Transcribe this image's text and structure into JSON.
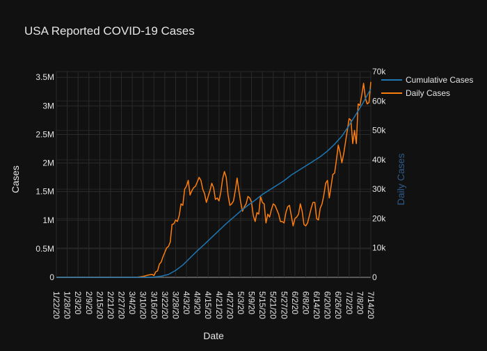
{
  "colors": {
    "background": "#111111",
    "grid": "#2b2b2b",
    "zeroline": "#5a5a5a",
    "cumulative": "#1f77b4",
    "daily": "#ff7f0e",
    "text": "#e6e6e6",
    "y2_title": "#2f5a8a"
  },
  "chart_data": {
    "type": "line",
    "title": "USA Reported COVID-19 Cases",
    "xlabel": "Date",
    "ylabel": "Cases",
    "y2label": "Daily Cases",
    "grid": true,
    "legend_position": "top-right",
    "x_start": "2020-01-22",
    "x_end": "2020-07-14",
    "xticks": [
      "1/22/20",
      "1/28/20",
      "2/3/20",
      "2/9/20",
      "2/15/20",
      "2/21/20",
      "2/27/20",
      "3/4/20",
      "3/10/20",
      "3/16/20",
      "3/22/20",
      "3/28/20",
      "4/3/20",
      "4/9/20",
      "4/15/20",
      "4/21/20",
      "4/27/20",
      "5/3/20",
      "5/9/20",
      "5/15/20",
      "5/21/20",
      "5/27/20",
      "6/2/20",
      "6/8/20",
      "6/14/20",
      "6/20/20",
      "6/26/20",
      "7/2/20",
      "7/8/20",
      "7/14/20"
    ],
    "ylim": [
      0,
      3600000
    ],
    "yticks": [
      0,
      500000,
      1000000,
      1500000,
      2000000,
      2500000,
      3000000,
      3500000
    ],
    "ytick_labels": [
      "0",
      "0.5M",
      "1M",
      "1.5M",
      "2M",
      "2.5M",
      "3M",
      "3.5M"
    ],
    "y2lim": [
      0,
      70000
    ],
    "y2ticks": [
      0,
      10000,
      20000,
      30000,
      40000,
      50000,
      60000,
      70000
    ],
    "y2tick_labels": [
      "0",
      "10k",
      "20k",
      "30k",
      "40k",
      "50k",
      "60k",
      "70k"
    ],
    "series": [
      {
        "name": "Cumulative Cases",
        "axis": "y",
        "points": [
          [
            "2020-01-22",
            0
          ],
          [
            "2020-03-01",
            100
          ],
          [
            "2020-03-10",
            1000
          ],
          [
            "2020-03-16",
            5000
          ],
          [
            "2020-03-20",
            20000
          ],
          [
            "2020-03-24",
            50000
          ],
          [
            "2020-03-28",
            120000
          ],
          [
            "2020-04-01",
            215000
          ],
          [
            "2020-04-05",
            340000
          ],
          [
            "2020-04-09",
            465000
          ],
          [
            "2020-04-13",
            580000
          ],
          [
            "2020-04-17",
            700000
          ],
          [
            "2020-04-21",
            820000
          ],
          [
            "2020-04-25",
            940000
          ],
          [
            "2020-04-29",
            1050000
          ],
          [
            "2020-05-03",
            1160000
          ],
          [
            "2020-05-07",
            1260000
          ],
          [
            "2020-05-11",
            1350000
          ],
          [
            "2020-05-15",
            1450000
          ],
          [
            "2020-05-19",
            1530000
          ],
          [
            "2020-05-23",
            1610000
          ],
          [
            "2020-05-27",
            1690000
          ],
          [
            "2020-05-31",
            1790000
          ],
          [
            "2020-06-04",
            1870000
          ],
          [
            "2020-06-08",
            1950000
          ],
          [
            "2020-06-12",
            2030000
          ],
          [
            "2020-06-16",
            2110000
          ],
          [
            "2020-06-20",
            2210000
          ],
          [
            "2020-06-24",
            2330000
          ],
          [
            "2020-06-28",
            2470000
          ],
          [
            "2020-07-02",
            2660000
          ],
          [
            "2020-07-06",
            2860000
          ],
          [
            "2020-07-10",
            3070000
          ],
          [
            "2020-07-14",
            3300000
          ]
        ]
      },
      {
        "name": "Daily Cases",
        "axis": "y2",
        "points": [
          [
            "2020-01-22",
            0
          ],
          [
            "2020-03-07",
            80
          ],
          [
            "2020-03-10",
            300
          ],
          [
            "2020-03-13",
            800
          ],
          [
            "2020-03-15",
            1000
          ],
          [
            "2020-03-16",
            600
          ],
          [
            "2020-03-17",
            1900
          ],
          [
            "2020-03-18",
            2200
          ],
          [
            "2020-03-19",
            4500
          ],
          [
            "2020-03-20",
            5200
          ],
          [
            "2020-03-21",
            7000
          ],
          [
            "2020-03-22",
            8500
          ],
          [
            "2020-03-23",
            10000
          ],
          [
            "2020-03-24",
            10500
          ],
          [
            "2020-03-25",
            12000
          ],
          [
            "2020-03-26",
            18000
          ],
          [
            "2020-03-27",
            18200
          ],
          [
            "2020-03-28",
            19500
          ],
          [
            "2020-03-29",
            19000
          ],
          [
            "2020-03-30",
            21000
          ],
          [
            "2020-03-31",
            25000
          ],
          [
            "2020-04-01",
            24500
          ],
          [
            "2020-04-02",
            30000
          ],
          [
            "2020-04-03",
            31000
          ],
          [
            "2020-04-04",
            33000
          ],
          [
            "2020-04-05",
            28000
          ],
          [
            "2020-04-06",
            29500
          ],
          [
            "2020-04-07",
            30500
          ],
          [
            "2020-04-08",
            31000
          ],
          [
            "2020-04-09",
            32500
          ],
          [
            "2020-04-10",
            34000
          ],
          [
            "2020-04-11",
            33000
          ],
          [
            "2020-04-12",
            30000
          ],
          [
            "2020-04-13",
            28500
          ],
          [
            "2020-04-14",
            25500
          ],
          [
            "2020-04-15",
            27500
          ],
          [
            "2020-04-16",
            29500
          ],
          [
            "2020-04-17",
            32000
          ],
          [
            "2020-04-18",
            30500
          ],
          [
            "2020-04-19",
            26500
          ],
          [
            "2020-04-20",
            27000
          ],
          [
            "2020-04-21",
            26000
          ],
          [
            "2020-04-22",
            29000
          ],
          [
            "2020-04-23",
            33500
          ],
          [
            "2020-04-24",
            36000
          ],
          [
            "2020-04-25",
            34000
          ],
          [
            "2020-04-26",
            28000
          ],
          [
            "2020-04-27",
            24500
          ],
          [
            "2020-04-28",
            25000
          ],
          [
            "2020-04-29",
            26000
          ],
          [
            "2020-04-30",
            29500
          ],
          [
            "2020-05-01",
            33800
          ],
          [
            "2020-05-02",
            29500
          ],
          [
            "2020-05-03",
            25500
          ],
          [
            "2020-05-04",
            22500
          ],
          [
            "2020-05-05",
            24000
          ],
          [
            "2020-05-06",
            25000
          ],
          [
            "2020-05-07",
            27500
          ],
          [
            "2020-05-08",
            27000
          ],
          [
            "2020-05-09",
            25500
          ],
          [
            "2020-05-10",
            21000
          ],
          [
            "2020-05-11",
            19000
          ],
          [
            "2020-05-12",
            22000
          ],
          [
            "2020-05-13",
            21500
          ],
          [
            "2020-05-14",
            27500
          ],
          [
            "2020-05-15",
            25500
          ],
          [
            "2020-05-16",
            25000
          ],
          [
            "2020-05-17",
            18500
          ],
          [
            "2020-05-18",
            21500
          ],
          [
            "2020-05-19",
            20500
          ],
          [
            "2020-05-20",
            23000
          ],
          [
            "2020-05-21",
            25000
          ],
          [
            "2020-05-22",
            24500
          ],
          [
            "2020-05-23",
            23000
          ],
          [
            "2020-05-24",
            21500
          ],
          [
            "2020-05-25",
            19000
          ],
          [
            "2020-05-26",
            19000
          ],
          [
            "2020-05-27",
            18500
          ],
          [
            "2020-05-28",
            22000
          ],
          [
            "2020-05-29",
            24000
          ],
          [
            "2020-05-30",
            24500
          ],
          [
            "2020-05-31",
            21000
          ],
          [
            "2020-06-01",
            17500
          ],
          [
            "2020-06-02",
            20000
          ],
          [
            "2020-06-03",
            20500
          ],
          [
            "2020-06-04",
            21500
          ],
          [
            "2020-06-05",
            25000
          ],
          [
            "2020-06-06",
            22500
          ],
          [
            "2020-06-07",
            18000
          ],
          [
            "2020-06-08",
            17500
          ],
          [
            "2020-06-09",
            18500
          ],
          [
            "2020-06-10",
            21000
          ],
          [
            "2020-06-11",
            23500
          ],
          [
            "2020-06-12",
            25500
          ],
          [
            "2020-06-13",
            25500
          ],
          [
            "2020-06-14",
            20000
          ],
          [
            "2020-06-15",
            19500
          ],
          [
            "2020-06-16",
            23500
          ],
          [
            "2020-06-17",
            25000
          ],
          [
            "2020-06-18",
            28000
          ],
          [
            "2020-06-19",
            32000
          ],
          [
            "2020-06-20",
            33000
          ],
          [
            "2020-06-21",
            27000
          ],
          [
            "2020-06-22",
            31000
          ],
          [
            "2020-06-23",
            35000
          ],
          [
            "2020-06-24",
            35500
          ],
          [
            "2020-06-25",
            40000
          ],
          [
            "2020-06-26",
            45000
          ],
          [
            "2020-06-27",
            42500
          ],
          [
            "2020-06-28",
            39000
          ],
          [
            "2020-06-29",
            42000
          ],
          [
            "2020-06-30",
            46000
          ],
          [
            "2020-07-01",
            50000
          ],
          [
            "2020-07-02",
            54000
          ],
          [
            "2020-07-03",
            53500
          ],
          [
            "2020-07-04",
            45500
          ],
          [
            "2020-07-05",
            50000
          ],
          [
            "2020-07-06",
            45500
          ],
          [
            "2020-07-07",
            59000
          ],
          [
            "2020-07-08",
            58500
          ],
          [
            "2020-07-09",
            62000
          ],
          [
            "2020-07-10",
            66000
          ],
          [
            "2020-07-11",
            61000
          ],
          [
            "2020-07-12",
            59000
          ],
          [
            "2020-07-13",
            59500
          ],
          [
            "2020-07-14",
            66500
          ]
        ]
      }
    ]
  }
}
